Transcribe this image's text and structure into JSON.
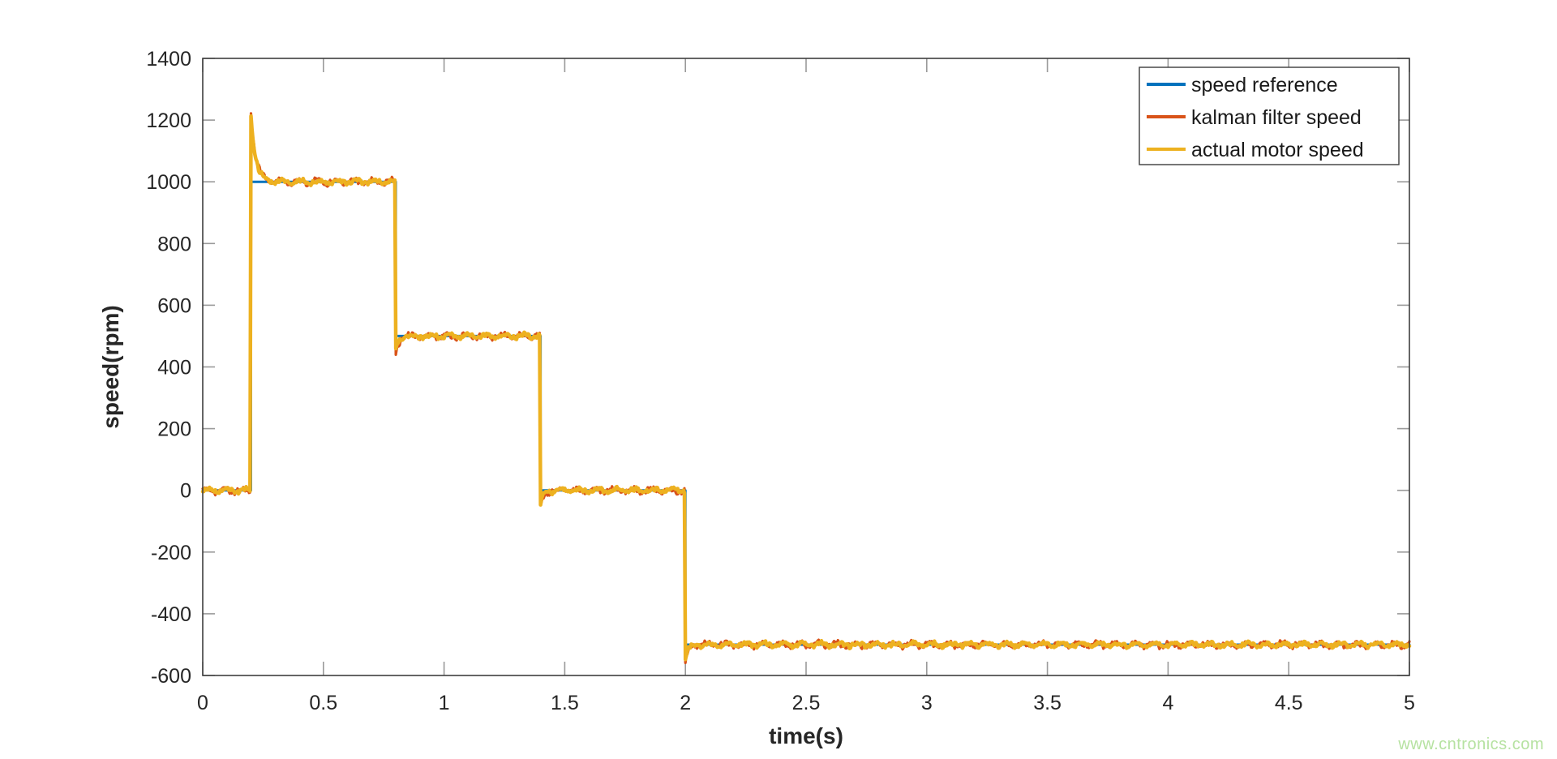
{
  "watermark": {
    "text": "www.cntronics.com",
    "color": "#b6e2a1"
  },
  "chart_data": {
    "type": "line",
    "title": "",
    "xlabel": "time(s)",
    "ylabel": "speed(rpm)",
    "xlim": [
      0,
      5
    ],
    "ylim": [
      -600,
      1400
    ],
    "xticks": [
      0,
      0.5,
      1,
      1.5,
      2,
      2.5,
      3,
      3.5,
      4,
      4.5,
      5
    ],
    "xtick_labels": [
      "0",
      "0.5",
      "1",
      "1.5",
      "2",
      "2.5",
      "3",
      "3.5",
      "4",
      "4.5",
      "5"
    ],
    "yticks": [
      -600,
      -400,
      -200,
      0,
      200,
      400,
      600,
      800,
      1000,
      1200,
      1400
    ],
    "ytick_labels": [
      "-600",
      "-400",
      "-200",
      "0",
      "200",
      "400",
      "600",
      "800",
      "1000",
      "1200",
      "1400"
    ],
    "grid": false,
    "legend_position": "top-right",
    "colors": {
      "axis": "#3f3f3f",
      "tick": "#9a9a9a",
      "text": "#262626",
      "legend_border": "#3c3c3c",
      "legend_background": "#ffffff"
    },
    "series": [
      {
        "name": "speed reference",
        "color": "#0072BD",
        "width": 3,
        "mode": "step",
        "points": [
          [
            0,
            0
          ],
          [
            0.2,
            0
          ],
          [
            0.2,
            1000
          ],
          [
            0.8,
            1000
          ],
          [
            0.8,
            500
          ],
          [
            1.4,
            500
          ],
          [
            1.4,
            0
          ],
          [
            2.0,
            0
          ],
          [
            2.0,
            -500
          ],
          [
            5,
            -500
          ]
        ]
      },
      {
        "name": "kalman filter speed",
        "color": "#D95319",
        "width": 3.2,
        "mode": "noisy",
        "t_end": 5,
        "noise_amp": 14,
        "seed": 7,
        "steps": [
          {
            "t": 0.0,
            "value": 0
          },
          {
            "t": 0.2,
            "value": 1000,
            "extreme": 1225,
            "tau": 0.02
          },
          {
            "t": 0.8,
            "value": 500,
            "extreme": 442,
            "tau": 0.012
          },
          {
            "t": 1.4,
            "value": 0,
            "extreme": -58,
            "tau": 0.012
          },
          {
            "t": 2.0,
            "value": -500,
            "extreme": -560,
            "tau": 0.012
          }
        ]
      },
      {
        "name": "actual motor speed",
        "color": "#EDB120",
        "width": 4.5,
        "mode": "noisy",
        "t_end": 5,
        "noise_amp": 11,
        "seed": 3,
        "steps": [
          {
            "t": 0.0,
            "value": 0
          },
          {
            "t": 0.2,
            "value": 1000,
            "extreme": 1212,
            "tau": 0.02
          },
          {
            "t": 0.8,
            "value": 500,
            "extreme": 452,
            "tau": 0.012
          },
          {
            "t": 1.4,
            "value": 0,
            "extreme": -48,
            "tau": 0.012
          },
          {
            "t": 2.0,
            "value": -500,
            "extreme": -548,
            "tau": 0.012
          }
        ]
      }
    ]
  }
}
